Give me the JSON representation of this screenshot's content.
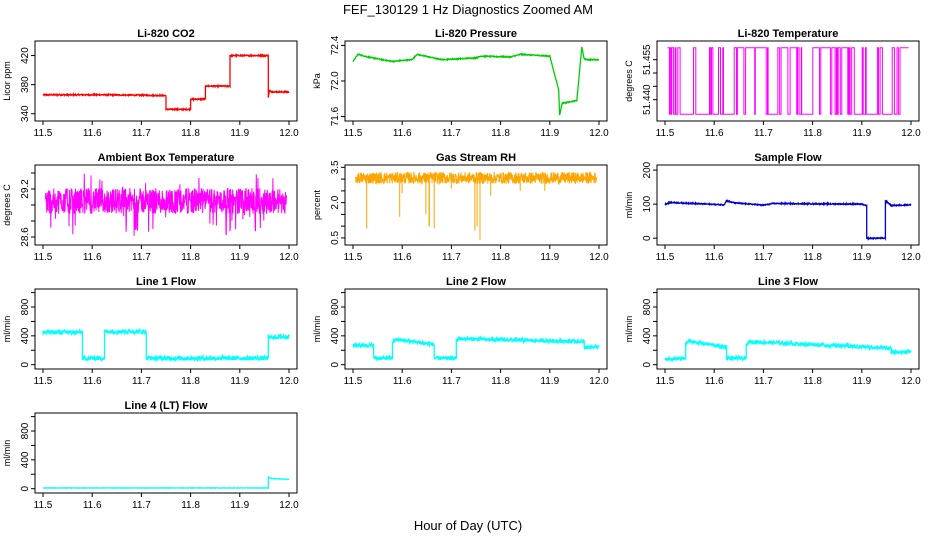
{
  "figure": {
    "title": "FEF_130129  1 Hz Diagnostics Zoomed AM",
    "xlabel": "Hour of Day (UTC)"
  },
  "chart_data": [
    {
      "type": "line",
      "title": "Li-820 CO2",
      "ylabel": "Licor ppm",
      "color": "#ff0000",
      "xlim": [
        11.5,
        12.0
      ],
      "ylim": [
        330,
        440
      ],
      "yticks": [
        340,
        380,
        420
      ],
      "xticks": [
        11.5,
        11.6,
        11.7,
        11.8,
        11.9,
        12.0
      ],
      "noise": 0.8,
      "x": [
        11.5,
        11.63,
        11.75,
        11.75,
        11.8,
        11.8,
        11.83,
        11.83,
        11.88,
        11.88,
        11.958,
        11.958,
        11.96,
        11.965,
        12.0
      ],
      "y": [
        366,
        366,
        365,
        346,
        346,
        360,
        360,
        378,
        378,
        420,
        420,
        362,
        372,
        370,
        370
      ]
    },
    {
      "type": "line",
      "title": "Li-820 Pressure",
      "ylabel": "kPa",
      "color": "#00cc00",
      "xlim": [
        11.5,
        12.0
      ],
      "ylim": [
        71.55,
        72.45
      ],
      "yticks": [
        71.6,
        72.0,
        72.4
      ],
      "xticks": [
        11.5,
        11.6,
        11.7,
        11.8,
        11.9,
        12.0
      ],
      "noise": 0.005,
      "x": [
        11.5,
        11.51,
        11.53,
        11.58,
        11.62,
        11.63,
        11.68,
        11.75,
        11.76,
        11.82,
        11.84,
        11.9,
        11.918,
        11.92,
        11.925,
        11.955,
        11.965,
        11.97,
        11.975,
        12.0
      ],
      "y": [
        72.22,
        72.3,
        72.27,
        72.22,
        72.24,
        72.3,
        72.24,
        72.26,
        72.28,
        72.27,
        72.3,
        72.28,
        71.9,
        71.62,
        71.75,
        71.78,
        72.38,
        72.25,
        72.24,
        72.24
      ]
    },
    {
      "type": "line",
      "title": "Li-820 Temperature",
      "ylabel": "degrees C",
      "color": "#ff00ff",
      "xlim": [
        11.5,
        12.0
      ],
      "ylim": [
        51.432,
        51.462
      ],
      "yticks": [
        51.44,
        51.455
      ],
      "yticks_minor": [
        51.44,
        51.445,
        51.45,
        51.455
      ],
      "xticks": [
        11.5,
        11.6,
        11.7,
        11.8,
        11.9,
        12.0
      ],
      "mode": "toggle",
      "levels": [
        51.4345,
        51.4595
      ]
    },
    {
      "type": "line",
      "title": "Ambient Box Temperature",
      "ylabel": "degrees C",
      "color": "#ff00ff",
      "xlim": [
        11.5,
        12.0
      ],
      "ylim": [
        28.5,
        29.5
      ],
      "yticks": [
        28.6,
        29.2
      ],
      "yticks_minor": [
        28.6,
        28.8,
        29.0,
        29.2,
        29.4
      ],
      "xticks": [
        11.5,
        11.6,
        11.7,
        11.8,
        11.9,
        12.0
      ],
      "mode": "band",
      "center": 29.05,
      "spread": 0.16,
      "spike_low": 28.6,
      "spike_high": 29.4
    },
    {
      "type": "line",
      "title": "Gas Stream RH",
      "ylabel": "percent",
      "color": "#ffa500",
      "xlim": [
        11.5,
        12.0
      ],
      "ylim": [
        0.2,
        3.6
      ],
      "yticks": [
        0.5,
        2.0,
        3.5
      ],
      "yticks_minor": [
        0.5,
        1.0,
        1.5,
        2.0,
        2.5,
        3.0,
        3.5
      ],
      "xticks": [
        11.5,
        11.6,
        11.7,
        11.8,
        11.9,
        12.0
      ],
      "mode": "rh",
      "center": 3.05,
      "spread": 0.25,
      "dips": [
        [
          11.528,
          0.9
        ],
        [
          11.595,
          1.4
        ],
        [
          11.648,
          1.5
        ],
        [
          11.655,
          1.0
        ],
        [
          11.665,
          0.9
        ],
        [
          11.748,
          0.8
        ],
        [
          11.752,
          1.0
        ],
        [
          11.758,
          0.4
        ],
        [
          11.6,
          2.4
        ],
        [
          11.7,
          2.6
        ],
        [
          11.78,
          2.3
        ],
        [
          11.84,
          2.5
        ],
        [
          11.89,
          2.5
        ]
      ]
    },
    {
      "type": "line",
      "title": "Sample Flow",
      "ylabel": "ml/min",
      "color": "#0000cc",
      "xlim": [
        11.5,
        12.0
      ],
      "ylim": [
        -20,
        215
      ],
      "yticks": [
        0,
        100,
        200
      ],
      "xticks": [
        11.5,
        11.6,
        11.7,
        11.8,
        11.9,
        12.0
      ],
      "noise": 1.5,
      "x": [
        11.5,
        11.51,
        11.62,
        11.625,
        11.64,
        11.7,
        11.72,
        11.9,
        11.91,
        11.91,
        11.948,
        11.948,
        11.96,
        12.0
      ],
      "y": [
        100,
        105,
        98,
        110,
        104,
        97,
        102,
        100,
        95,
        0,
        0,
        110,
        96,
        98
      ]
    },
    {
      "type": "line",
      "title": "Line 1 Flow",
      "ylabel": "ml/min",
      "color": "#00ffff",
      "xlim": [
        11.5,
        12.0
      ],
      "ylim": [
        -60,
        1050
      ],
      "yticks": [
        0,
        400,
        800
      ],
      "yticks_minor": [
        0,
        200,
        400,
        600,
        800,
        1000
      ],
      "xticks": [
        11.5,
        11.6,
        11.7,
        11.8,
        11.9,
        12.0
      ],
      "noise": 30,
      "x": [
        11.5,
        11.58,
        11.58,
        11.625,
        11.625,
        11.71,
        11.71,
        11.958,
        11.958,
        12.0
      ],
      "y": [
        450,
        450,
        90,
        90,
        460,
        460,
        90,
        90,
        380,
        390
      ]
    },
    {
      "type": "line",
      "title": "Line 2 Flow",
      "ylabel": "ml/min",
      "color": "#00ffff",
      "xlim": [
        11.5,
        12.0
      ],
      "ylim": [
        -60,
        1050
      ],
      "yticks": [
        0,
        400,
        800
      ],
      "yticks_minor": [
        0,
        200,
        400,
        600,
        800,
        1000
      ],
      "xticks": [
        11.5,
        11.6,
        11.7,
        11.8,
        11.9,
        12.0
      ],
      "noise": 25,
      "x": [
        11.5,
        11.542,
        11.542,
        11.58,
        11.58,
        11.588,
        11.665,
        11.665,
        11.71,
        11.71,
        11.715,
        11.97,
        11.97,
        12.0
      ],
      "y": [
        270,
        270,
        90,
        90,
        310,
        350,
        280,
        90,
        90,
        330,
        360,
        320,
        240,
        250
      ]
    },
    {
      "type": "line",
      "title": "Line 3 Flow",
      "ylabel": "ml/min",
      "color": "#00ffff",
      "xlim": [
        11.5,
        12.0
      ],
      "ylim": [
        -60,
        1050
      ],
      "yticks": [
        0,
        400,
        800
      ],
      "yticks_minor": [
        0,
        200,
        400,
        600,
        800,
        1000
      ],
      "xticks": [
        11.5,
        11.6,
        11.7,
        11.8,
        11.9,
        12.0
      ],
      "noise": 25,
      "x": [
        11.5,
        11.542,
        11.542,
        11.548,
        11.625,
        11.625,
        11.665,
        11.665,
        11.672,
        11.96,
        11.96,
        12.0
      ],
      "y": [
        70,
        90,
        280,
        330,
        240,
        90,
        90,
        270,
        320,
        230,
        170,
        180
      ]
    },
    {
      "type": "line",
      "title": "Line 4 (LT) Flow",
      "ylabel": "ml/min",
      "color": "#00ffff",
      "xlim": [
        11.5,
        12.0
      ],
      "ylim": [
        -60,
        1050
      ],
      "yticks": [
        0,
        400,
        800
      ],
      "yticks_minor": [
        0,
        200,
        400,
        600,
        800,
        1000
      ],
      "xticks": [
        11.5,
        11.6,
        11.7,
        11.8,
        11.9,
        12.0
      ],
      "noise": 2,
      "x": [
        11.5,
        11.958,
        11.958,
        11.965,
        12.0
      ],
      "y": [
        10,
        10,
        160,
        140,
        130
      ]
    }
  ]
}
